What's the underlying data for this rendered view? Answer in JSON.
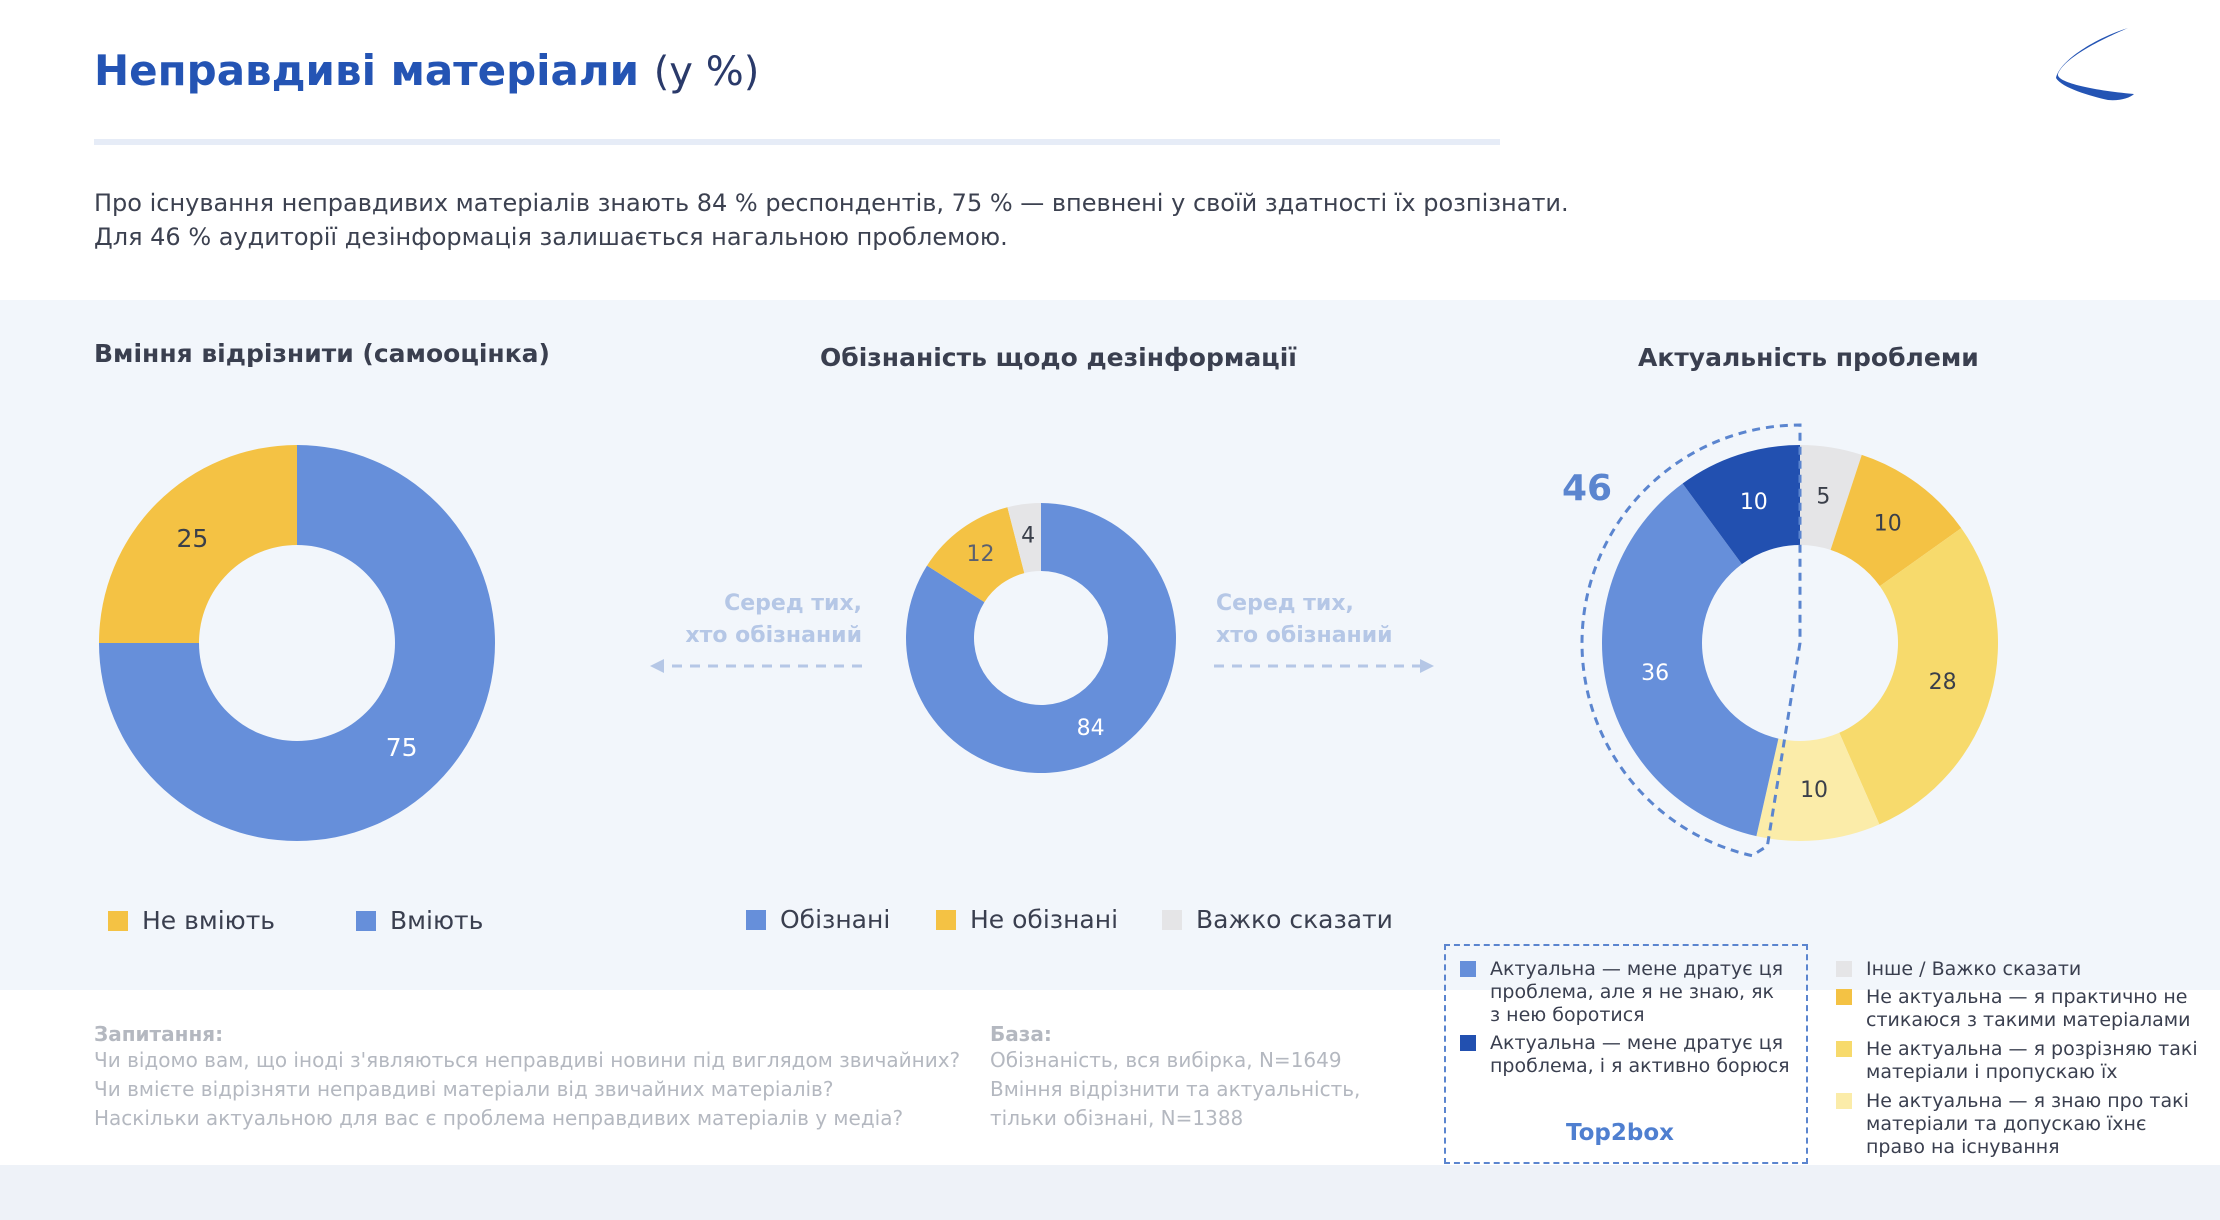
{
  "header": {
    "title": "Неправдиві матеріали",
    "title_unit": "(у %)",
    "lead_line1": "Про існування неправдивих матеріалів знають 84 % респондентів, 75 % — впевнені у своїй здатності їх розпізнати.",
    "lead_line2": "Для 46 % аудиторії дезінформація залишається нагальною проблемою."
  },
  "colors": {
    "blue": "#668fda",
    "dark_blue": "#2250b0",
    "orange": "#f4c244",
    "yellow": "#f7da6c",
    "pale_yellow": "#fbeca9",
    "gray": "#e5e5e7",
    "accent": "#2454b4"
  },
  "arrows": {
    "left": {
      "line1": "Серед тих,",
      "line2": "хто обізнаний"
    },
    "right": {
      "line1": "Серед тих,",
      "line2": "хто обізнаний"
    }
  },
  "chart_data": [
    {
      "type": "pie",
      "title": "Вміння відрізнити (самооцінка)",
      "labels": [
        "Вміють",
        "Не вміють"
      ],
      "values": [
        75,
        25
      ],
      "colors": [
        "#668fda",
        "#f4c244"
      ],
      "legend": [
        "Не вміють",
        "Вміють"
      ],
      "legend_colors": [
        "#f4c244",
        "#668fda"
      ]
    },
    {
      "type": "pie",
      "title": "Обізнаність щодо дезінформації",
      "labels": [
        "Обізнані",
        "Не обізнані",
        "Важко сказати"
      ],
      "values": [
        84,
        12,
        4
      ],
      "colors": [
        "#668fda",
        "#f4c244",
        "#e5e5e7"
      ],
      "legend": [
        "Обізнані",
        "Не обізнані",
        "Важко сказати"
      ],
      "legend_colors": [
        "#668fda",
        "#f4c244",
        "#e5e5e7"
      ]
    },
    {
      "type": "pie",
      "title": "Актуальність проблеми",
      "labels": [
        "Інше / Важко сказати",
        "Не актуальна — я практично не стикаюся з такими матеріалами",
        "Не актуальна — я розрізняю такі матеріали і пропускаю їх",
        "Не актуальна — я знаю про такі матеріали та допускаю їхнє право на існування",
        "Актуальна — мене дратує ця проблема, але я не знаю, як з нею боротися",
        "Актуальна — мене дратує ця проблема, і я активно борюся"
      ],
      "values": [
        5,
        10,
        28,
        10,
        36,
        10
      ],
      "colors": [
        "#e5e5e7",
        "#f4c244",
        "#f7da6c",
        "#fbeca9",
        "#668fda",
        "#2250b0"
      ],
      "highlight_total": "46",
      "highlight_label": "Top2box"
    }
  ],
  "right_legend": {
    "top2box": [
      {
        "label": "Актуальна — мене дратує ця проблема, але я не знаю, як з нею боротися",
        "color": "#668fda"
      },
      {
        "label": "Актуальна — мене дратує ця проблема, і я активно борюся",
        "color": "#2250b0"
      }
    ],
    "other": [
      {
        "label": "Інше / Важко сказати",
        "color": "#e5e5e7"
      },
      {
        "label": "Не актуальна — я практично не стикаюся з такими матеріалами",
        "color": "#f4c244"
      },
      {
        "label": "Не актуальна — я розрізняю такі матеріали і пропускаю їх",
        "color": "#f7da6c"
      },
      {
        "label": "Не актуальна — я знаю про такі матеріали та допускаю їхнє право на існування",
        "color": "#fbeca9"
      }
    ]
  },
  "notes": {
    "question_heading": "Запитання:",
    "questions": [
      "Чи відомо вам, що іноді з'являються неправдиві новини під виглядом звичайних?",
      "Чи вмієте відрізняти неправдиві матеріали від звичайних матеріалів?",
      "Наскільки актуальною для вас є проблема неправдивих матеріалів у медіа?"
    ],
    "base_heading": "База:",
    "base": [
      "Обізнаність, вся вибірка,  N=1649",
      "Вміння відрізнити та актуальність,",
      "тільки обізнані, N=1388"
    ]
  }
}
